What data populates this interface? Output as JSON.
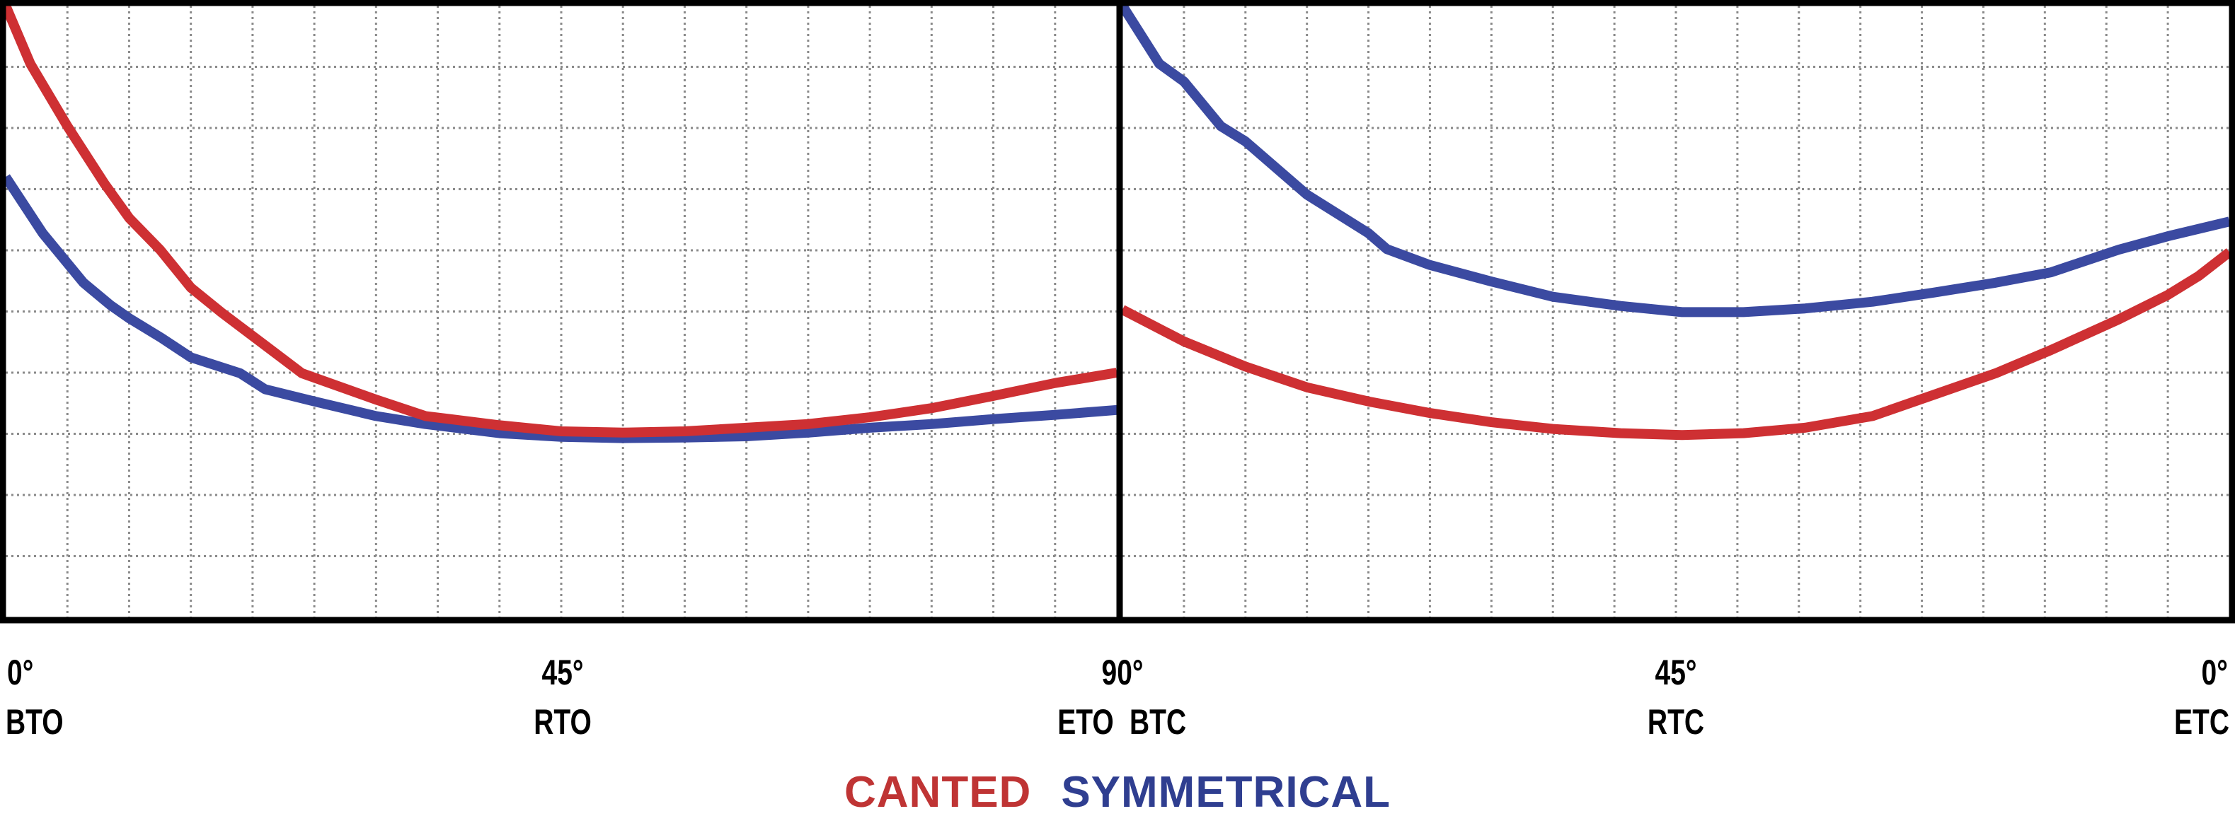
{
  "colors": {
    "canted": "#ce3033",
    "symmetrical": "#3b4aa1",
    "legend_canted": "#bf3434",
    "legend_symmetrical": "#2f3e90",
    "grid": "#8a8a8a",
    "border": "#000000",
    "label_text": "#000000",
    "background": "#ffffff"
  },
  "axis": {
    "angle_row": [
      "0°",
      "45°",
      "90°",
      "45°",
      "0°"
    ],
    "code_row": [
      "BTO",
      "RTO",
      "ETO",
      "BTC",
      "RTC",
      "ETC"
    ]
  },
  "legend": {
    "items": [
      {
        "label": "CANTED",
        "series": "canted"
      },
      {
        "label": "SYMMETRICAL",
        "series": "symmetrical"
      }
    ]
  },
  "chart_data": [
    {
      "type": "line",
      "panel": "opening-stroke",
      "x_unit": "degrees",
      "x_range": [
        0,
        90
      ],
      "x_direction": "ltr",
      "x_ticks": [
        {
          "angle": "0°",
          "code": "BTO"
        },
        {
          "angle": "45°",
          "code": "RTO"
        },
        {
          "angle": "90°",
          "code": "ETO"
        }
      ],
      "y_axis": {
        "tick_labels": "none",
        "unit": "relative torque, 0-1 of plot height",
        "range": [
          0,
          1
        ]
      },
      "grid": {
        "columns": 18,
        "rows": 10,
        "style": "dotted"
      },
      "legend_position": "bottom-center",
      "series": [
        {
          "name": "CANTED",
          "points": [
            [
              0,
              1.0
            ],
            [
              2,
              0.905
            ],
            [
              5,
              0.803
            ],
            [
              8,
              0.709
            ],
            [
              10,
              0.653
            ],
            [
              12.5,
              0.601
            ],
            [
              15,
              0.539
            ],
            [
              17.5,
              0.498
            ],
            [
              20,
              0.46
            ],
            [
              24,
              0.399
            ],
            [
              30,
              0.356
            ],
            [
              34,
              0.329
            ],
            [
              40,
              0.314
            ],
            [
              45,
              0.304
            ],
            [
              50,
              0.302
            ],
            [
              55,
              0.304
            ],
            [
              60,
              0.31
            ],
            [
              65,
              0.316
            ],
            [
              70,
              0.327
            ],
            [
              75,
              0.342
            ],
            [
              80,
              0.362
            ],
            [
              85,
              0.383
            ],
            [
              90,
              0.4
            ]
          ]
        },
        {
          "name": "SYMMETRICAL",
          "points": [
            [
              0,
              0.72
            ],
            [
              3,
              0.628
            ],
            [
              6.3,
              0.547
            ],
            [
              8.5,
              0.51
            ],
            [
              10,
              0.489
            ],
            [
              12.6,
              0.457
            ],
            [
              15,
              0.425
            ],
            [
              19,
              0.399
            ],
            [
              21,
              0.373
            ],
            [
              25,
              0.353
            ],
            [
              30,
              0.329
            ],
            [
              34,
              0.316
            ],
            [
              40,
              0.301
            ],
            [
              45,
              0.295
            ],
            [
              50,
              0.293
            ],
            [
              55,
              0.294
            ],
            [
              60,
              0.296
            ],
            [
              65,
              0.302
            ],
            [
              70,
              0.31
            ],
            [
              75,
              0.316
            ],
            [
              80,
              0.324
            ],
            [
              85,
              0.331
            ],
            [
              90,
              0.339
            ]
          ]
        }
      ]
    },
    {
      "type": "line",
      "panel": "closing-stroke",
      "x_unit": "degrees",
      "x_range": [
        90,
        0
      ],
      "x_direction": "rtl",
      "x_ticks": [
        {
          "angle": "90°",
          "code": "BTC"
        },
        {
          "angle": "45°",
          "code": "RTC"
        },
        {
          "angle": "0°",
          "code": "ETC"
        }
      ],
      "y_axis": {
        "tick_labels": "none",
        "unit": "relative torque, 0-1 of plot height",
        "range": [
          0,
          1
        ]
      },
      "grid": {
        "columns": 18,
        "rows": 10,
        "style": "dotted"
      },
      "legend_position": "bottom-center",
      "series": [
        {
          "name": "CANTED",
          "points": [
            [
              90,
              0.503
            ],
            [
              85,
              0.451
            ],
            [
              80,
              0.41
            ],
            [
              75,
              0.376
            ],
            [
              70,
              0.353
            ],
            [
              65,
              0.334
            ],
            [
              60,
              0.319
            ],
            [
              55,
              0.308
            ],
            [
              49.5,
              0.301
            ],
            [
              44.5,
              0.298
            ],
            [
              39.5,
              0.301
            ],
            [
              34.5,
              0.31
            ],
            [
              29,
              0.329
            ],
            [
              24,
              0.364
            ],
            [
              19,
              0.399
            ],
            [
              14.5,
              0.437
            ],
            [
              9,
              0.487
            ],
            [
              5,
              0.527
            ],
            [
              2.5,
              0.558
            ],
            [
              0,
              0.597
            ]
          ]
        },
        {
          "name": "SYMMETRICAL",
          "points": [
            [
              90,
              1.0
            ],
            [
              87,
              0.905
            ],
            [
              85,
              0.876
            ],
            [
              82,
              0.803
            ],
            [
              80,
              0.778
            ],
            [
              75,
              0.691
            ],
            [
              70,
              0.628
            ],
            [
              68.5,
              0.602
            ],
            [
              65,
              0.576
            ],
            [
              60,
              0.549
            ],
            [
              55,
              0.524
            ],
            [
              49.5,
              0.509
            ],
            [
              44.5,
              0.499
            ],
            [
              39.5,
              0.499
            ],
            [
              34.5,
              0.505
            ],
            [
              29,
              0.516
            ],
            [
              24,
              0.531
            ],
            [
              19,
              0.547
            ],
            [
              14.5,
              0.564
            ],
            [
              9,
              0.601
            ],
            [
              5,
              0.623
            ],
            [
              0,
              0.647
            ]
          ]
        }
      ]
    }
  ]
}
